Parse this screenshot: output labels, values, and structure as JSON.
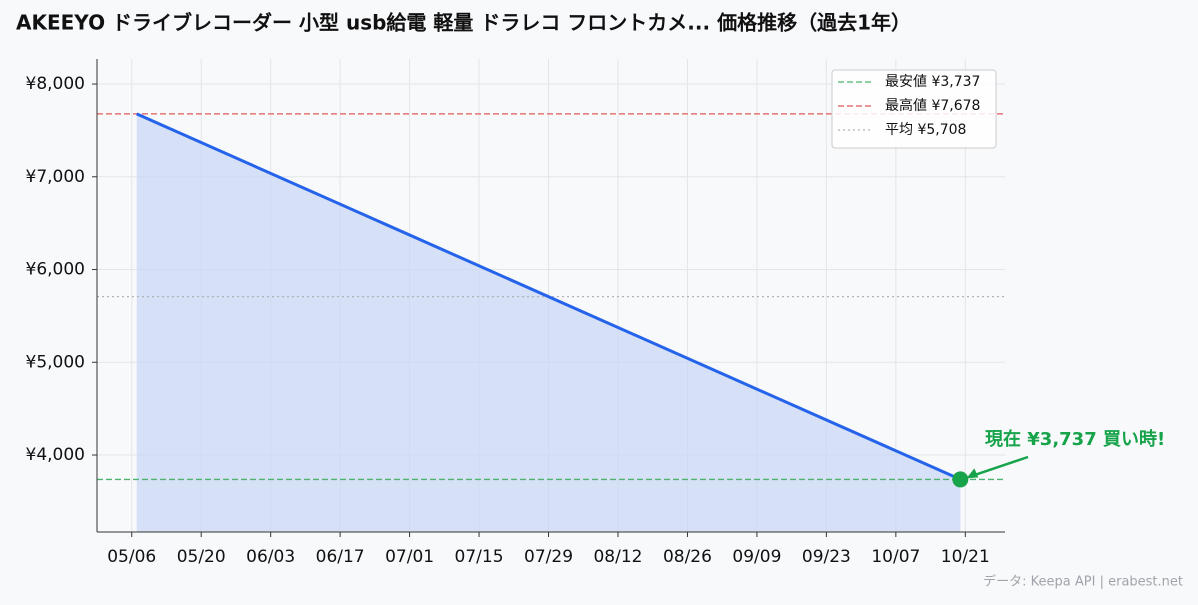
{
  "chart_data": {
    "type": "line",
    "title": "AKEEYO ドライブレコーダー 小型 usb給電 軽量 ドラレコ フロントカメ... 価格推移（過去1年）",
    "x": [
      "05/07",
      "10/20"
    ],
    "values": [
      7678,
      3737
    ],
    "color": "#2563eb",
    "area_color": "#c7d6f5",
    "xlim": [
      "04/29",
      "10/29"
    ],
    "xticks": [
      "05/06",
      "05/20",
      "06/03",
      "06/17",
      "07/01",
      "07/15",
      "07/29",
      "08/12",
      "08/26",
      "09/09",
      "09/23",
      "10/07",
      "10/21"
    ],
    "ylim": [
      3170,
      8270
    ],
    "yticks": [
      {
        "value": 4000,
        "label": "¥4,000"
      },
      {
        "value": 5000,
        "label": "¥5,000"
      },
      {
        "value": 6000,
        "label": "¥6,000"
      },
      {
        "value": 7000,
        "label": "¥7,000"
      },
      {
        "value": 8000,
        "label": "¥8,000"
      }
    ],
    "grid": true,
    "legend": "upper right",
    "reference_lines": [
      {
        "name": "最安値 ¥3,737",
        "value": 3737,
        "color": "#4cb46e",
        "style": "dashed"
      },
      {
        "name": "最高値 ¥7,678",
        "value": 7678,
        "color": "#e05a5a",
        "style": "dashed"
      },
      {
        "name": "平均 ¥5,708",
        "value": 5708,
        "color": "#b0b4ba",
        "style": "dotted"
      }
    ],
    "annotation": {
      "text": "現在 ¥3,737 買い時!",
      "color": "#16a34a"
    },
    "footer": "データ: Keepa API | erabest.net"
  }
}
